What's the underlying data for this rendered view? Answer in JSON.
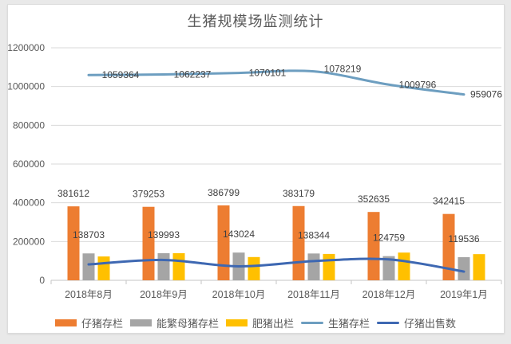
{
  "page": {
    "background_color": "#e9e9e9",
    "panel_background": "#ffffff"
  },
  "chart_data": {
    "type": "combo",
    "title": "生猪规模场监测统计",
    "categories": [
      "2018年8月",
      "2018年9月",
      "2018年10月",
      "2018年11月",
      "2018年12月",
      "2019年1月"
    ],
    "series": [
      {
        "name": "仔猪存栏",
        "type": "bar",
        "color": "#ED7D31",
        "show_labels": true,
        "values": [
          381612,
          379253,
          386799,
          383179,
          352635,
          342415
        ]
      },
      {
        "name": "能繁母猪存栏",
        "type": "bar",
        "color": "#A5A5A5",
        "show_labels": true,
        "values": [
          138703,
          139993,
          143024,
          138344,
          124759,
          119536
        ]
      },
      {
        "name": "肥猪出栏",
        "type": "bar",
        "color": "#FFC000",
        "show_labels": false,
        "values": [
          123000,
          140000,
          120000,
          136000,
          143000,
          135000
        ]
      },
      {
        "name": "生猪存栏",
        "type": "line",
        "color": "#6D9EC0",
        "show_labels": true,
        "values": [
          1059364,
          1062237,
          1070101,
          1078219,
          1009796,
          959076
        ]
      },
      {
        "name": "仔猪出售数",
        "type": "line",
        "color": "#3E68B2",
        "show_labels": false,
        "values": [
          82000,
          105000,
          72000,
          99000,
          108000,
          45000
        ]
      }
    ],
    "y_axis": {
      "min": 0,
      "max": 1200000,
      "step": 200000,
      "tick_labels": [
        "1200000",
        "1000000",
        "800000",
        "600000",
        "400000",
        "200000",
        "0"
      ]
    },
    "legend_position": "bottom",
    "grid": "horizontal",
    "colors": {
      "title_text": "#595959",
      "axis_text": "#595959",
      "data_label_text": "#404040",
      "gridline": "#d9d9d9",
      "axis_line": "#c6c6c6"
    }
  }
}
